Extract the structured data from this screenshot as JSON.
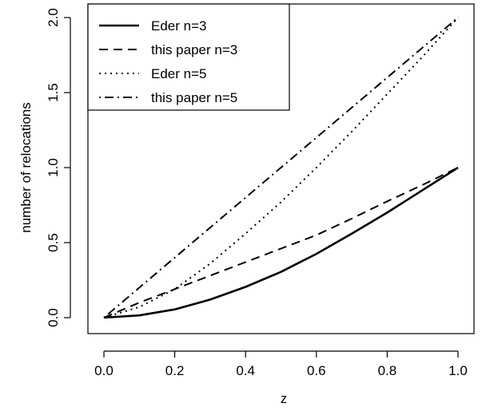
{
  "chart_data": {
    "type": "line",
    "title": "",
    "xlabel": "z",
    "ylabel": "number of relocations",
    "xlim": [
      0,
      1
    ],
    "ylim": [
      0,
      2
    ],
    "xticks": [
      "0.0",
      "0.2",
      "0.4",
      "0.6",
      "0.8",
      "1.0"
    ],
    "yticks": [
      "0.0",
      "0.5",
      "1.0",
      "1.5",
      "2.0"
    ],
    "grid": false,
    "legend": {
      "position": "top-left"
    },
    "series": [
      {
        "name": "Eder n=3",
        "line_style": "solid",
        "x": [
          0.0,
          0.1,
          0.2,
          0.3,
          0.4,
          0.5,
          0.6,
          0.7,
          0.8,
          0.9,
          1.0
        ],
        "y": [
          0.0,
          0.015,
          0.055,
          0.12,
          0.205,
          0.305,
          0.425,
          0.56,
          0.7,
          0.85,
          1.0
        ]
      },
      {
        "name": "this paper n=3",
        "line_style": "dashed",
        "x": [
          0.0,
          0.1,
          0.2,
          0.3,
          0.4,
          0.5,
          0.6,
          0.7,
          0.8,
          0.9,
          1.0
        ],
        "y": [
          0.0,
          0.1,
          0.19,
          0.28,
          0.37,
          0.46,
          0.55,
          0.66,
          0.775,
          0.885,
          1.0
        ]
      },
      {
        "name": "Eder n=5",
        "line_style": "dotted",
        "x": [
          0.0,
          0.1,
          0.2,
          0.3,
          0.4,
          0.5,
          0.6,
          0.7,
          0.8,
          0.9,
          1.0
        ],
        "y": [
          0.0,
          0.07,
          0.19,
          0.36,
          0.56,
          0.77,
          1.0,
          1.24,
          1.49,
          1.74,
          2.0
        ]
      },
      {
        "name": "this paper n=5",
        "line_style": "dotdash",
        "x": [
          0.0,
          0.1,
          0.2,
          0.3,
          0.4,
          0.5,
          0.6,
          0.7,
          0.8,
          0.9,
          1.0
        ],
        "y": [
          0.0,
          0.2,
          0.4,
          0.6,
          0.8,
          1.0,
          1.2,
          1.4,
          1.6,
          1.8,
          2.0
        ]
      }
    ]
  }
}
